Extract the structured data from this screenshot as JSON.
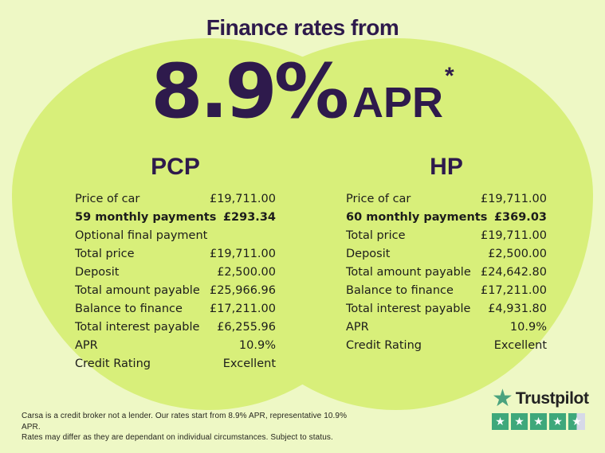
{
  "colors": {
    "background": "#eef8c5",
    "blob_green": "#d8ef7a",
    "accent_purple": "#2e1a4c",
    "text_dark": "#1d1d1b",
    "trustpilot_green": "#3ea87b",
    "star_empty_gray": "#d6d9e8"
  },
  "hero": {
    "title": "Finance rates from",
    "rate": "8.9%",
    "apr_label": "APR",
    "asterisk": "*"
  },
  "pcp_table": {
    "title": "PCP",
    "rows": [
      {
        "label": "Price of car",
        "value": "£19,711.00",
        "bold": false
      },
      {
        "label": "59 monthly payments",
        "value": "£293.34",
        "bold": true
      },
      {
        "label": "Optional final payment",
        "value": "",
        "bold": false
      },
      {
        "label": "Total price",
        "value": "£19,711.00",
        "bold": false
      },
      {
        "label": "Deposit",
        "value": "£2,500.00",
        "bold": false
      },
      {
        "label": "Total amount payable",
        "value": "£25,966.96",
        "bold": false
      },
      {
        "label": "Balance to finance",
        "value": "£17,211.00",
        "bold": false
      },
      {
        "label": "Total interest payable",
        "value": "£6,255.96",
        "bold": false
      },
      {
        "label": "APR",
        "value": "10.9%",
        "bold": false
      },
      {
        "label": "Credit Rating",
        "value": "Excellent",
        "bold": false
      }
    ]
  },
  "hp_table": {
    "title": "HP",
    "rows": [
      {
        "label": "Price of car",
        "value": "£19,711.00",
        "bold": false
      },
      {
        "label": "60 monthly payments",
        "value": "£369.03",
        "bold": true
      },
      {
        "label": "Total price",
        "value": "£19,711.00",
        "bold": false
      },
      {
        "label": "Deposit",
        "value": "£2,500.00",
        "bold": false
      },
      {
        "label": "Total amount payable",
        "value": "£24,642.80",
        "bold": false
      },
      {
        "label": "Balance to finance",
        "value": "£17,211.00",
        "bold": false
      },
      {
        "label": "Total interest payable",
        "value": "£4,931.80",
        "bold": false
      },
      {
        "label": "APR",
        "value": "10.9%",
        "bold": false
      },
      {
        "label": "Credit Rating",
        "value": "Excellent",
        "bold": false
      }
    ]
  },
  "disclaimer": {
    "line1": "Carsa is a credit broker not a lender. Our rates start from 8.9% APR, representative 10.9% APR.",
    "line2": "Rates may differ as they are dependant on individual circumstances. Subject to status."
  },
  "trustpilot": {
    "brand": "Trustpilot",
    "star_glyph": "★",
    "stars": [
      1,
      1,
      1,
      1,
      0.5
    ]
  }
}
